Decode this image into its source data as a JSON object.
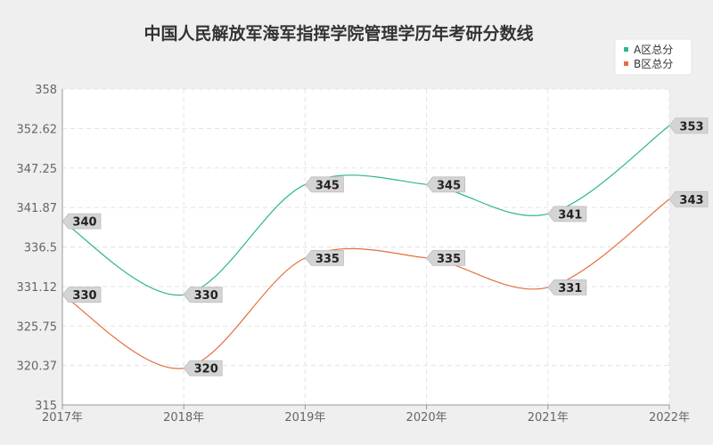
{
  "chart_data": {
    "type": "line",
    "title": "中国人民解放军海军指挥学院管理学历年考研分数线",
    "categories": [
      "2017年",
      "2018年",
      "2019年",
      "2020年",
      "2021年",
      "2022年"
    ],
    "series": [
      {
        "name": "A区总分",
        "values": [
          340,
          330,
          345,
          345,
          341,
          353
        ],
        "color": "#2fb58f"
      },
      {
        "name": "B区总分",
        "values": [
          330,
          320,
          335,
          335,
          331,
          343
        ],
        "color": "#e2703f"
      }
    ],
    "ylim": [
      315,
      358
    ],
    "y_ticks": [
      "315",
      "320.37",
      "325.75",
      "331.12",
      "336.5",
      "341.87",
      "347.25",
      "352.62",
      "358"
    ],
    "grid": true,
    "legend_position": "top-right",
    "smooth": true
  }
}
